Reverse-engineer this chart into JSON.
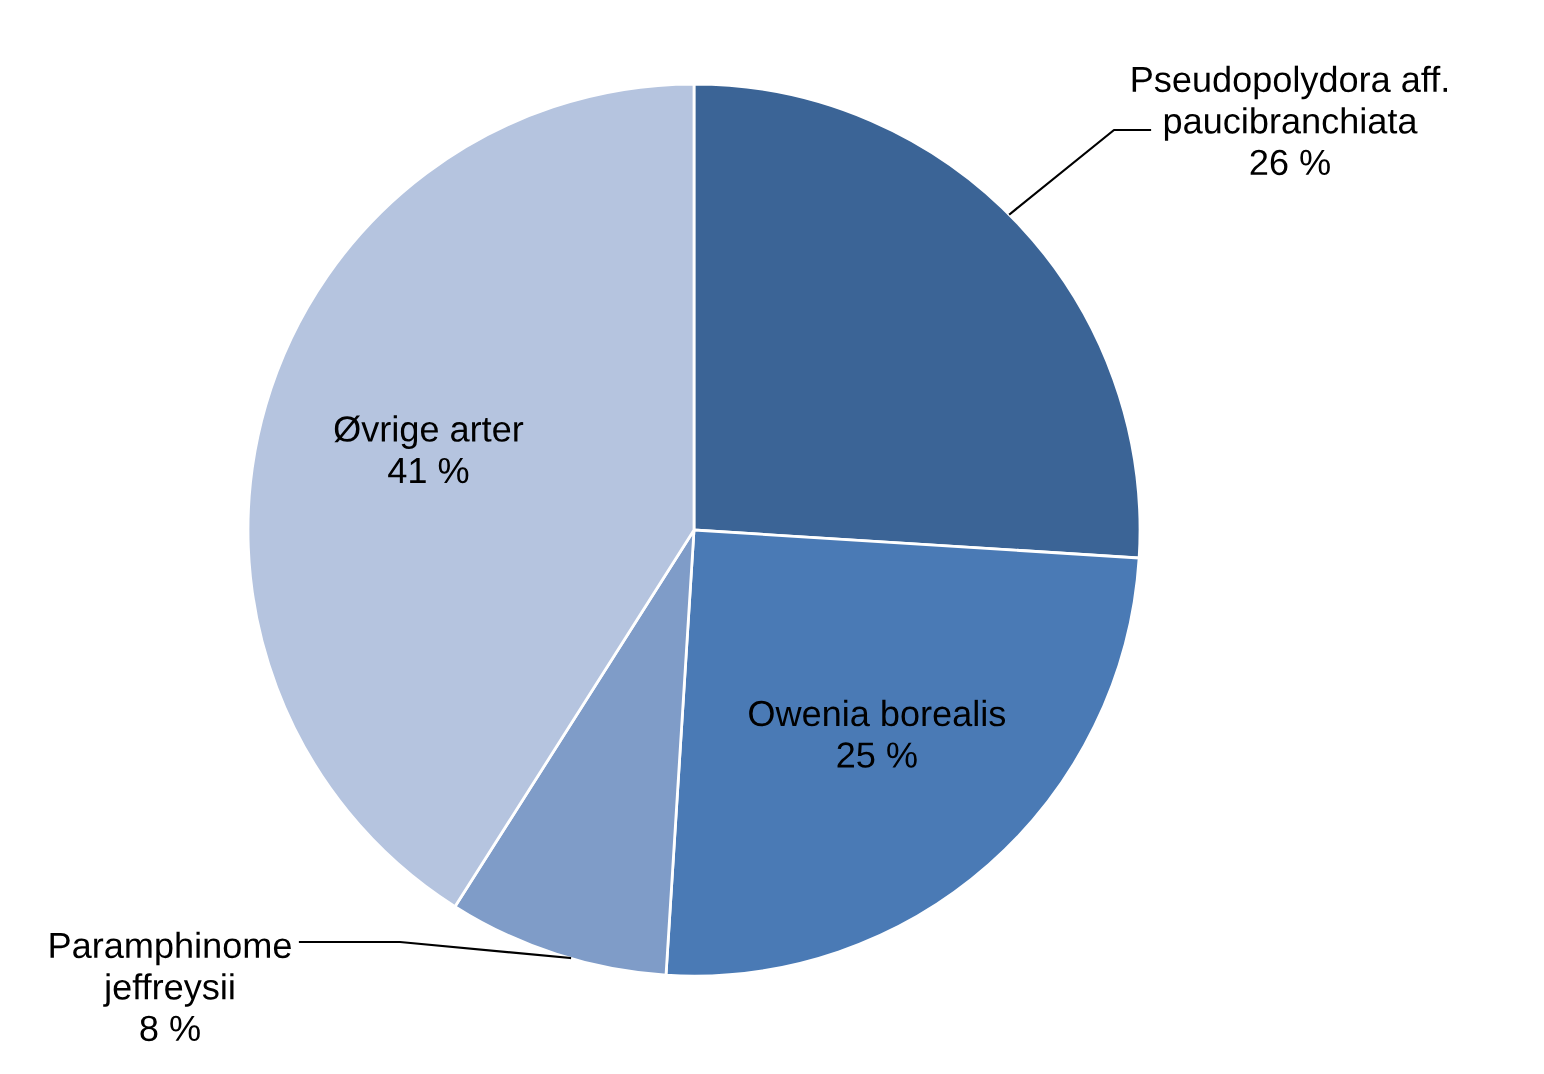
{
  "chart_data": {
    "type": "pie",
    "categories": [
      "Pseudopolydora aff.\npaucibranchiata",
      "Owenia borealis",
      "Paramphinome\njeffreysii",
      "Øvrige arter"
    ],
    "values": [
      26,
      25,
      8,
      41
    ],
    "value_labels": [
      "26 %",
      "25 %",
      "8 %",
      "41 %"
    ],
    "colors": [
      "#3b6496",
      "#4a7ab5",
      "#7f9cc8",
      "#b5c4df"
    ],
    "legend": false
  }
}
